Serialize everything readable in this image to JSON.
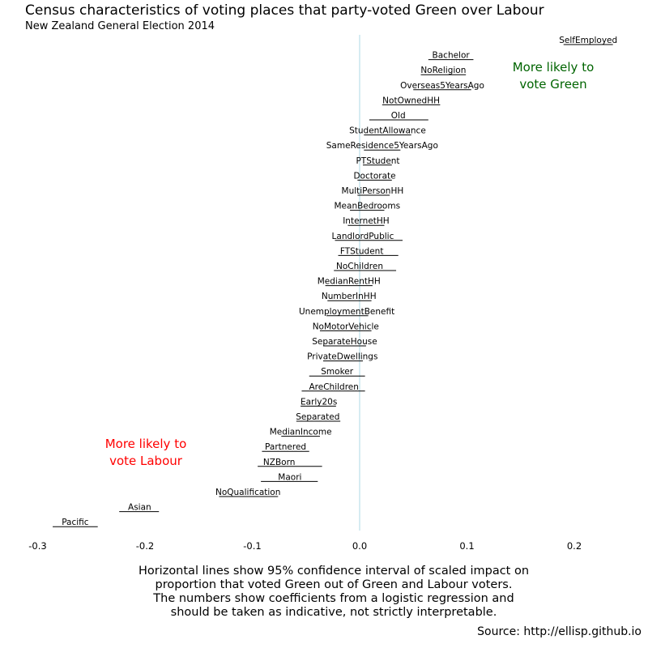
{
  "colors": {
    "green": "#006400",
    "labour": "#ff0000",
    "zero_line": "#add8e6",
    "interval": "#000000"
  },
  "chart_data": {
    "type": "interval",
    "title": "Census characteristics of voting places that party-voted Green over Labour",
    "subtitle": "New Zealand General Election 2014",
    "xlim": [
      -0.3,
      0.24
    ],
    "x_ticks": [
      "-0.3",
      "-0.2",
      "-0.1",
      "0.0",
      "0.1",
      "0.2"
    ],
    "x_tick_values": [
      -0.3,
      -0.2,
      -0.1,
      0.0,
      0.1,
      0.2
    ],
    "zero_line": 0.0,
    "grid": false,
    "annotations": {
      "green": [
        "More likely to",
        "vote Green"
      ],
      "labour": [
        "More likely to",
        "vote Labour"
      ]
    },
    "caption": [
      "Horizontal lines show 95% confidence interval of scaled impact on",
      "proportion that voted Green out of Green and Labour voters.",
      "The numbers show coefficients from a logistic regression and",
      "should be taken as indicative, not strictly interpretable."
    ],
    "source": "Source: http://ellisp.github.io",
    "variables": [
      {
        "name": "SelfEmployed",
        "estimate": 0.213,
        "lower": 0.19,
        "upper": 0.236
      },
      {
        "name": "Bachelor",
        "estimate": 0.085,
        "lower": 0.064,
        "upper": 0.106
      },
      {
        "name": "NoReligion",
        "estimate": 0.078,
        "lower": 0.057,
        "upper": 0.099
      },
      {
        "name": "Overseas5YearsAgo",
        "estimate": 0.077,
        "lower": 0.05,
        "upper": 0.104
      },
      {
        "name": "NotOwnedHH",
        "estimate": 0.048,
        "lower": 0.021,
        "upper": 0.075
      },
      {
        "name": "Old",
        "estimate": 0.036,
        "lower": 0.009,
        "upper": 0.064
      },
      {
        "name": "StudentAllowance",
        "estimate": 0.026,
        "lower": 0.004,
        "upper": 0.048
      },
      {
        "name": "SameResidence5YearsAgo",
        "estimate": 0.021,
        "lower": 0.004,
        "upper": 0.038
      },
      {
        "name": "PTStudent",
        "estimate": 0.017,
        "lower": 0.003,
        "upper": 0.03
      },
      {
        "name": "Doctorate",
        "estimate": 0.014,
        "lower": -0.002,
        "upper": 0.03
      },
      {
        "name": "MultiPersonHH",
        "estimate": 0.012,
        "lower": -0.002,
        "upper": 0.028
      },
      {
        "name": "MeanBedrooms",
        "estimate": 0.007,
        "lower": -0.009,
        "upper": 0.023
      },
      {
        "name": "InternetHH",
        "estimate": 0.006,
        "lower": -0.011,
        "upper": 0.023
      },
      {
        "name": "LandlordPublic",
        "estimate": 0.003,
        "lower": -0.023,
        "upper": 0.04
      },
      {
        "name": "FTStudent",
        "estimate": 0.002,
        "lower": -0.02,
        "upper": 0.036
      },
      {
        "name": "NoChildren",
        "estimate": 0.0,
        "lower": -0.024,
        "upper": 0.034
      },
      {
        "name": "MedianRentHH",
        "estimate": -0.01,
        "lower": -0.032,
        "upper": 0.012
      },
      {
        "name": "NumberInHH",
        "estimate": -0.01,
        "lower": -0.03,
        "upper": 0.011
      },
      {
        "name": "UnemploymentBenefit",
        "estimate": -0.012,
        "lower": -0.031,
        "upper": 0.008
      },
      {
        "name": "NoMotorVehicle",
        "estimate": -0.013,
        "lower": -0.037,
        "upper": 0.011
      },
      {
        "name": "SeparateHouse",
        "estimate": -0.014,
        "lower": -0.034,
        "upper": 0.006
      },
      {
        "name": "PrivateDwellings",
        "estimate": -0.016,
        "lower": -0.034,
        "upper": 0.003
      },
      {
        "name": "Smoker",
        "estimate": -0.021,
        "lower": -0.047,
        "upper": 0.005
      },
      {
        "name": "AreChildren",
        "estimate": -0.024,
        "lower": -0.054,
        "upper": 0.005
      },
      {
        "name": "Early20s",
        "estimate": -0.038,
        "lower": -0.055,
        "upper": -0.022
      },
      {
        "name": "Separated",
        "estimate": -0.039,
        "lower": -0.059,
        "upper": -0.018
      },
      {
        "name": "MedianIncome",
        "estimate": -0.055,
        "lower": -0.073,
        "upper": -0.037
      },
      {
        "name": "Partnered",
        "estimate": -0.069,
        "lower": -0.091,
        "upper": -0.047
      },
      {
        "name": "NZBorn",
        "estimate": -0.075,
        "lower": -0.095,
        "upper": -0.035
      },
      {
        "name": "Maori",
        "estimate": -0.065,
        "lower": -0.092,
        "upper": -0.039
      },
      {
        "name": "NoQualification",
        "estimate": -0.104,
        "lower": -0.131,
        "upper": -0.076
      },
      {
        "name": "Asian",
        "estimate": -0.205,
        "lower": -0.224,
        "upper": -0.187
      },
      {
        "name": "Pacific",
        "estimate": -0.265,
        "lower": -0.286,
        "upper": -0.244
      }
    ]
  }
}
